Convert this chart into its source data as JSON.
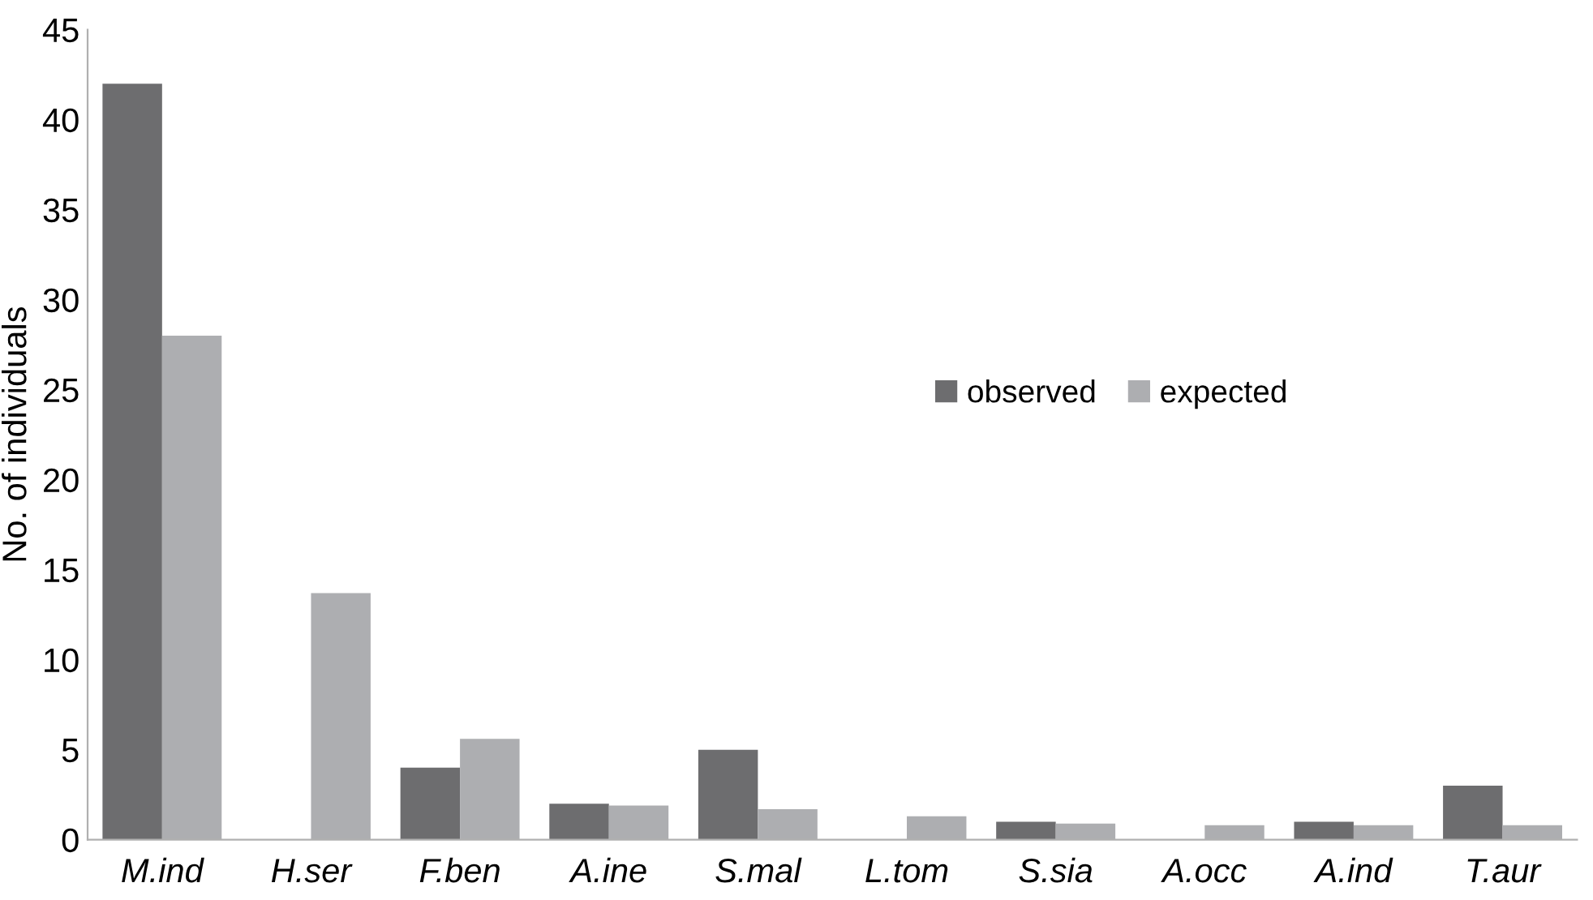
{
  "chart_data": {
    "type": "bar",
    "ylabel": "No. of individuals",
    "categories": [
      "M.ind",
      "H.ser",
      "F.ben",
      "A.ine",
      "S.mal",
      "L.tom",
      "S.sia",
      "A.occ",
      "A.ind",
      "T.aur"
    ],
    "series": [
      {
        "name": "observed",
        "color": "#6d6d6f",
        "values": [
          42,
          0,
          4,
          2,
          5,
          0,
          1,
          0,
          1,
          3
        ]
      },
      {
        "name": "expected",
        "color": "#adaeb1",
        "values": [
          28,
          13.7,
          5.6,
          1.9,
          1.7,
          1.3,
          0.9,
          0.8,
          0.8,
          0.8
        ]
      }
    ],
    "ylim": [
      0,
      45
    ],
    "yticks": [
      0,
      5,
      10,
      15,
      20,
      25,
      30,
      35,
      40,
      45
    ],
    "grid": false,
    "legend": "right"
  }
}
